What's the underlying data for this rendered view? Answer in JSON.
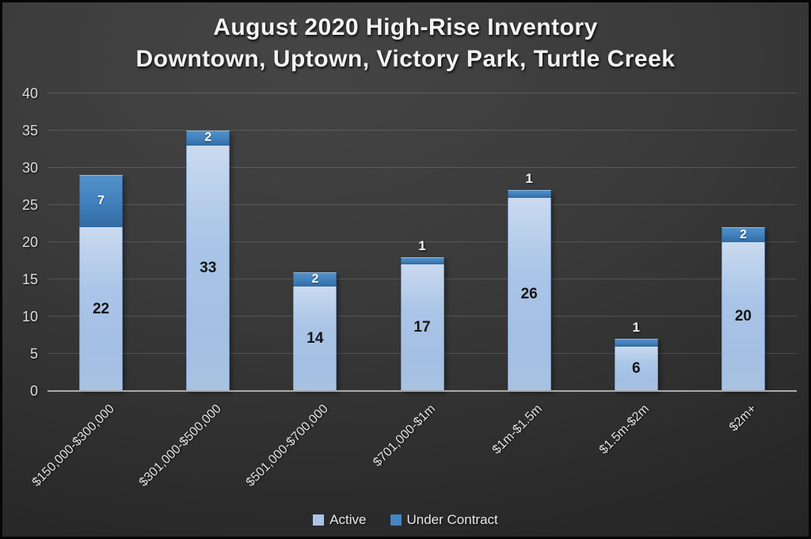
{
  "chart_data": {
    "type": "bar",
    "stacked": true,
    "title": "August 2020 High-Rise Inventory",
    "subtitle": "Downtown, Uptown, Victory Park, Turtle Creek",
    "categories": [
      "$150,000-$300,000",
      "$301,000-$500,000",
      "$501,000-$700,000",
      "$701,000-$1m",
      "$1m-$1.5m",
      "$1.5m-$2m",
      "$2m+"
    ],
    "series": [
      {
        "name": "Active",
        "color": "#a9c4e6",
        "values": [
          22,
          33,
          14,
          17,
          26,
          6,
          20
        ]
      },
      {
        "name": "Under Contract",
        "color": "#4485c4",
        "values": [
          7,
          2,
          2,
          1,
          1,
          1,
          2
        ]
      }
    ],
    "totals": [
      29,
      35,
      16,
      18,
      27,
      7,
      22
    ],
    "ylim": [
      0,
      40
    ],
    "yticks": [
      0,
      5,
      10,
      15,
      20,
      25,
      30,
      35,
      40
    ],
    "grid": true,
    "legend_position": "bottom",
    "colors": {
      "background": "#333333",
      "gridline": "#4f4f4f",
      "axis_line": "#ababab",
      "axis_text": "#dcdcdc",
      "title_text": "#f4f4f4",
      "active_value_label": "#141414",
      "under_contract_value_label": "#ffffff"
    }
  }
}
